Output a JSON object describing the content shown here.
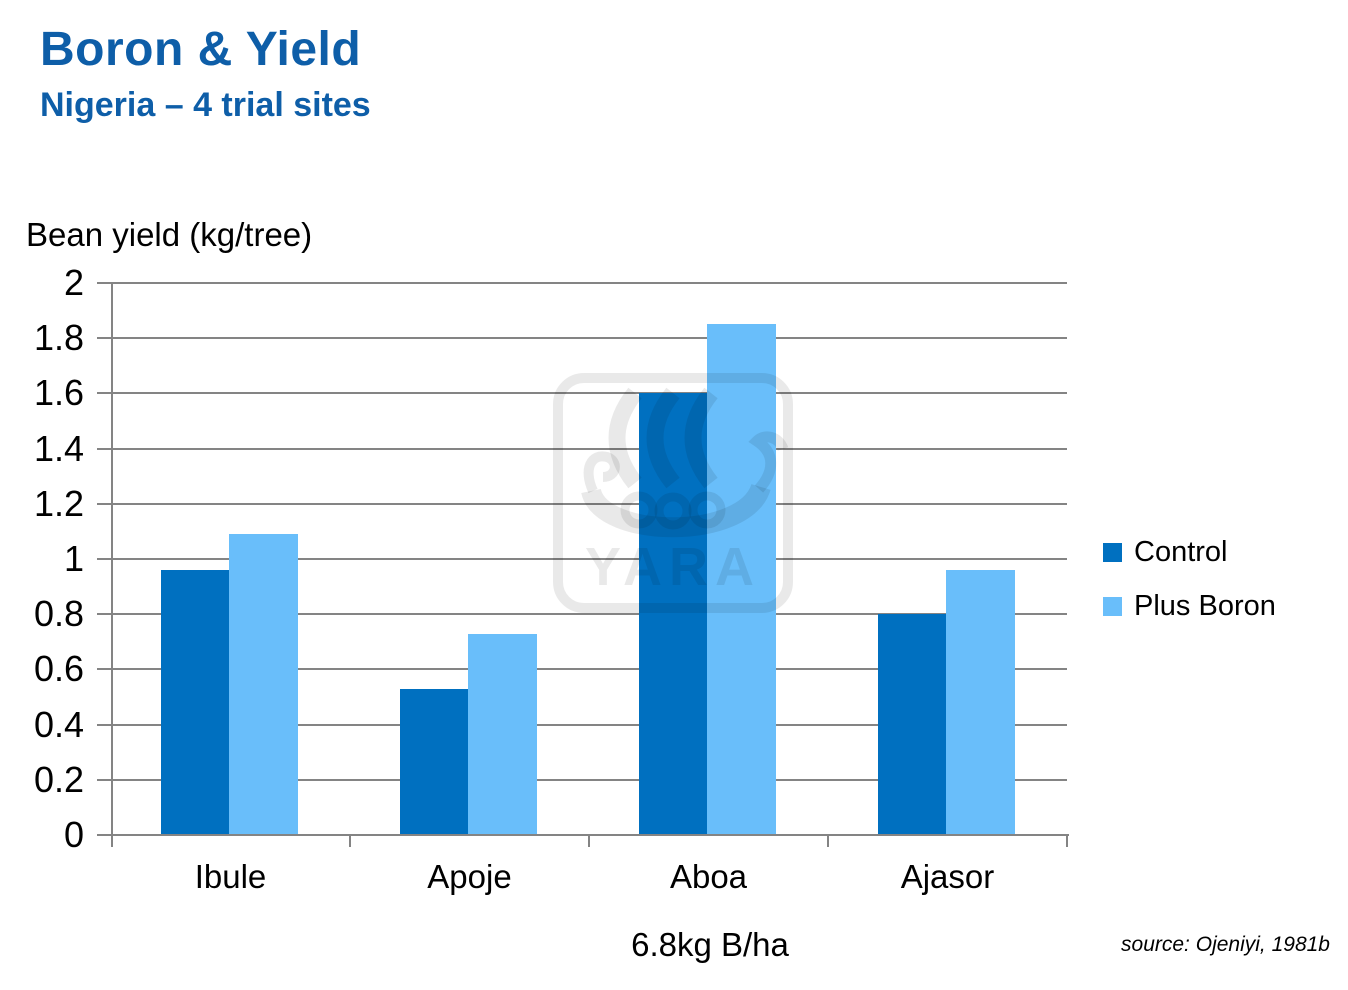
{
  "page": {
    "title": "Boron & Yield",
    "subtitle": "Nigeria – 4 trial sites",
    "source": "source: Ojeniyi, 1981b"
  },
  "colors": {
    "heading_blue": "#0E5EA8",
    "control_bar": "#0070C0",
    "plus_boron_bar": "#69BEFA",
    "gridline_gray": "#848484",
    "watermark_gray": "rgba(0,0,0,0.085)",
    "text": "#000000"
  },
  "watermark": {
    "text": "YARA"
  },
  "legend": {
    "items": [
      {
        "label": "Control"
      },
      {
        "label": "Plus Boron"
      }
    ]
  },
  "chart_data": {
    "type": "bar",
    "title": "Boron & Yield — Nigeria, 4 trial sites",
    "ylabel": "Bean yield (kg/tree)",
    "xlabel": "6.8kg B/ha",
    "categories": [
      "Ibule",
      "Apoje",
      "Aboa",
      "Ajasor"
    ],
    "series": [
      {
        "name": "Control",
        "color": "#0070C0",
        "values": [
          0.96,
          0.53,
          1.6,
          0.8
        ]
      },
      {
        "name": "Plus Boron",
        "color": "#69BEFA",
        "values": [
          1.09,
          0.73,
          1.85,
          0.96
        ]
      }
    ],
    "ylim": [
      0,
      2
    ],
    "ytick_step": 0.2,
    "yticks": [
      "0",
      "0.2",
      "0.4",
      "0.6",
      "0.8",
      "1",
      "1.2",
      "1.4",
      "1.6",
      "1.8",
      "2"
    ],
    "grid": "horizontal",
    "legend_position": "right"
  }
}
